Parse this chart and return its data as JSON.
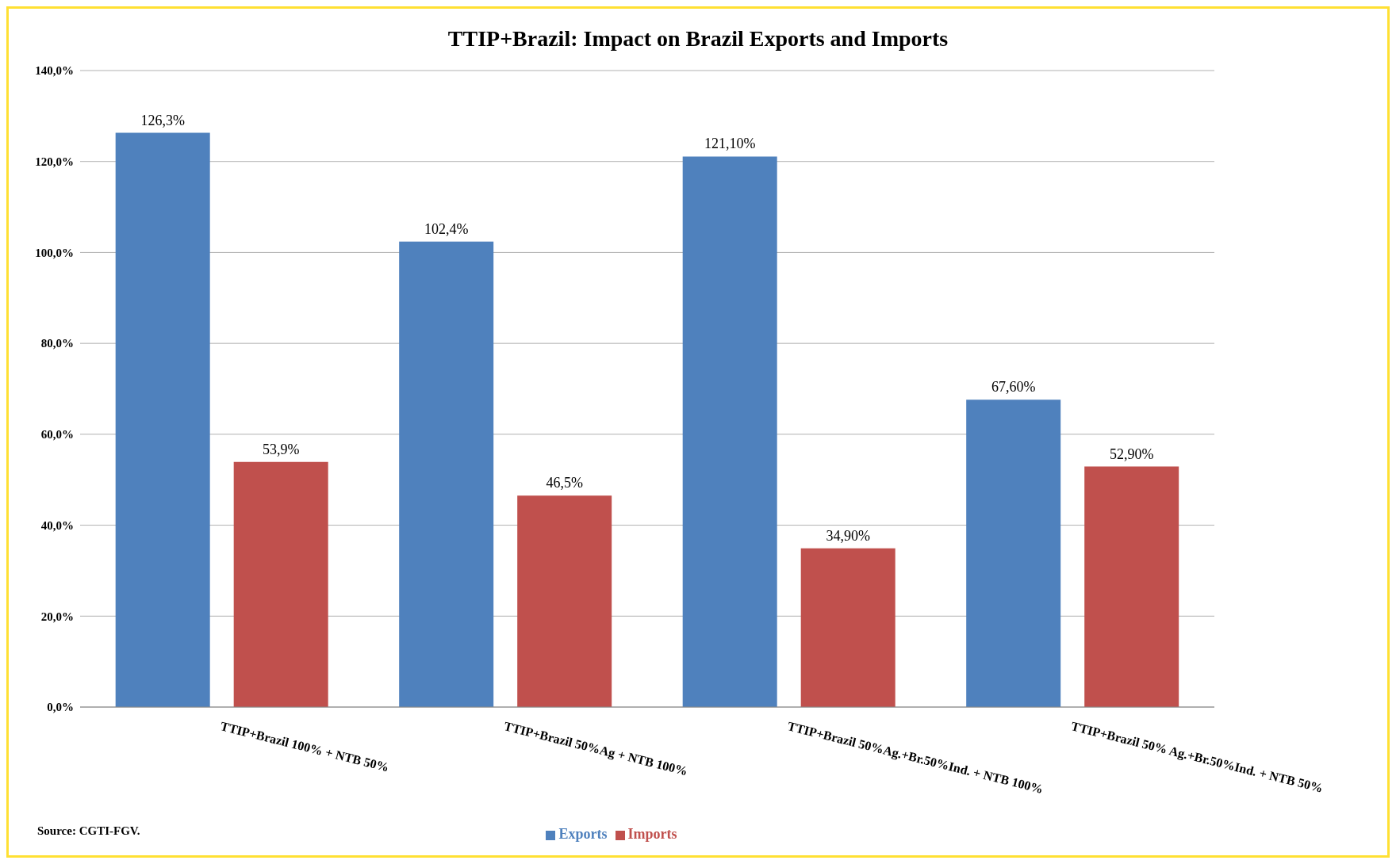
{
  "chart_data": {
    "type": "bar",
    "title": "TTIP+Brazil: Impact on Brazil Exports and Imports",
    "categories": [
      "TTIP+Brazil 100% + NTB 50%",
      "TTIP+Brazil 50%Ag + NTB 100%",
      "TTIP+Brazil 50%Ag.+Br.50%Ind. + NTB 100%",
      "TTIP+Brazil 50% Ag.+Br.50%Ind. + NTB 50%"
    ],
    "series": [
      {
        "name": "Exports",
        "color": "#4f81bd",
        "values": [
          126.3,
          102.4,
          121.1,
          67.6
        ],
        "value_labels": [
          "126,3%",
          "102,4%",
          "121,10%",
          "67,60%"
        ]
      },
      {
        "name": "Imports",
        "color": "#c0504d",
        "values": [
          53.9,
          46.5,
          34.9,
          52.9
        ],
        "value_labels": [
          "53,9%",
          "46,5%",
          "34,90%",
          "52,90%"
        ]
      }
    ],
    "ylim": [
      0,
      140
    ],
    "yticks": [
      {
        "value": 0,
        "label": "0,0%"
      },
      {
        "value": 20,
        "label": "20,0%"
      },
      {
        "value": 40,
        "label": "40,0%"
      },
      {
        "value": 60,
        "label": "60,0%"
      },
      {
        "value": 80,
        "label": "80,0%"
      },
      {
        "value": 100,
        "label": "100,0%"
      },
      {
        "value": 120,
        "label": "120,0%"
      },
      {
        "value": 140,
        "label": "140,0%"
      }
    ],
    "grid": "y",
    "legend": "bottom",
    "annotations": [
      "Source: CGTI-FGV."
    ]
  }
}
